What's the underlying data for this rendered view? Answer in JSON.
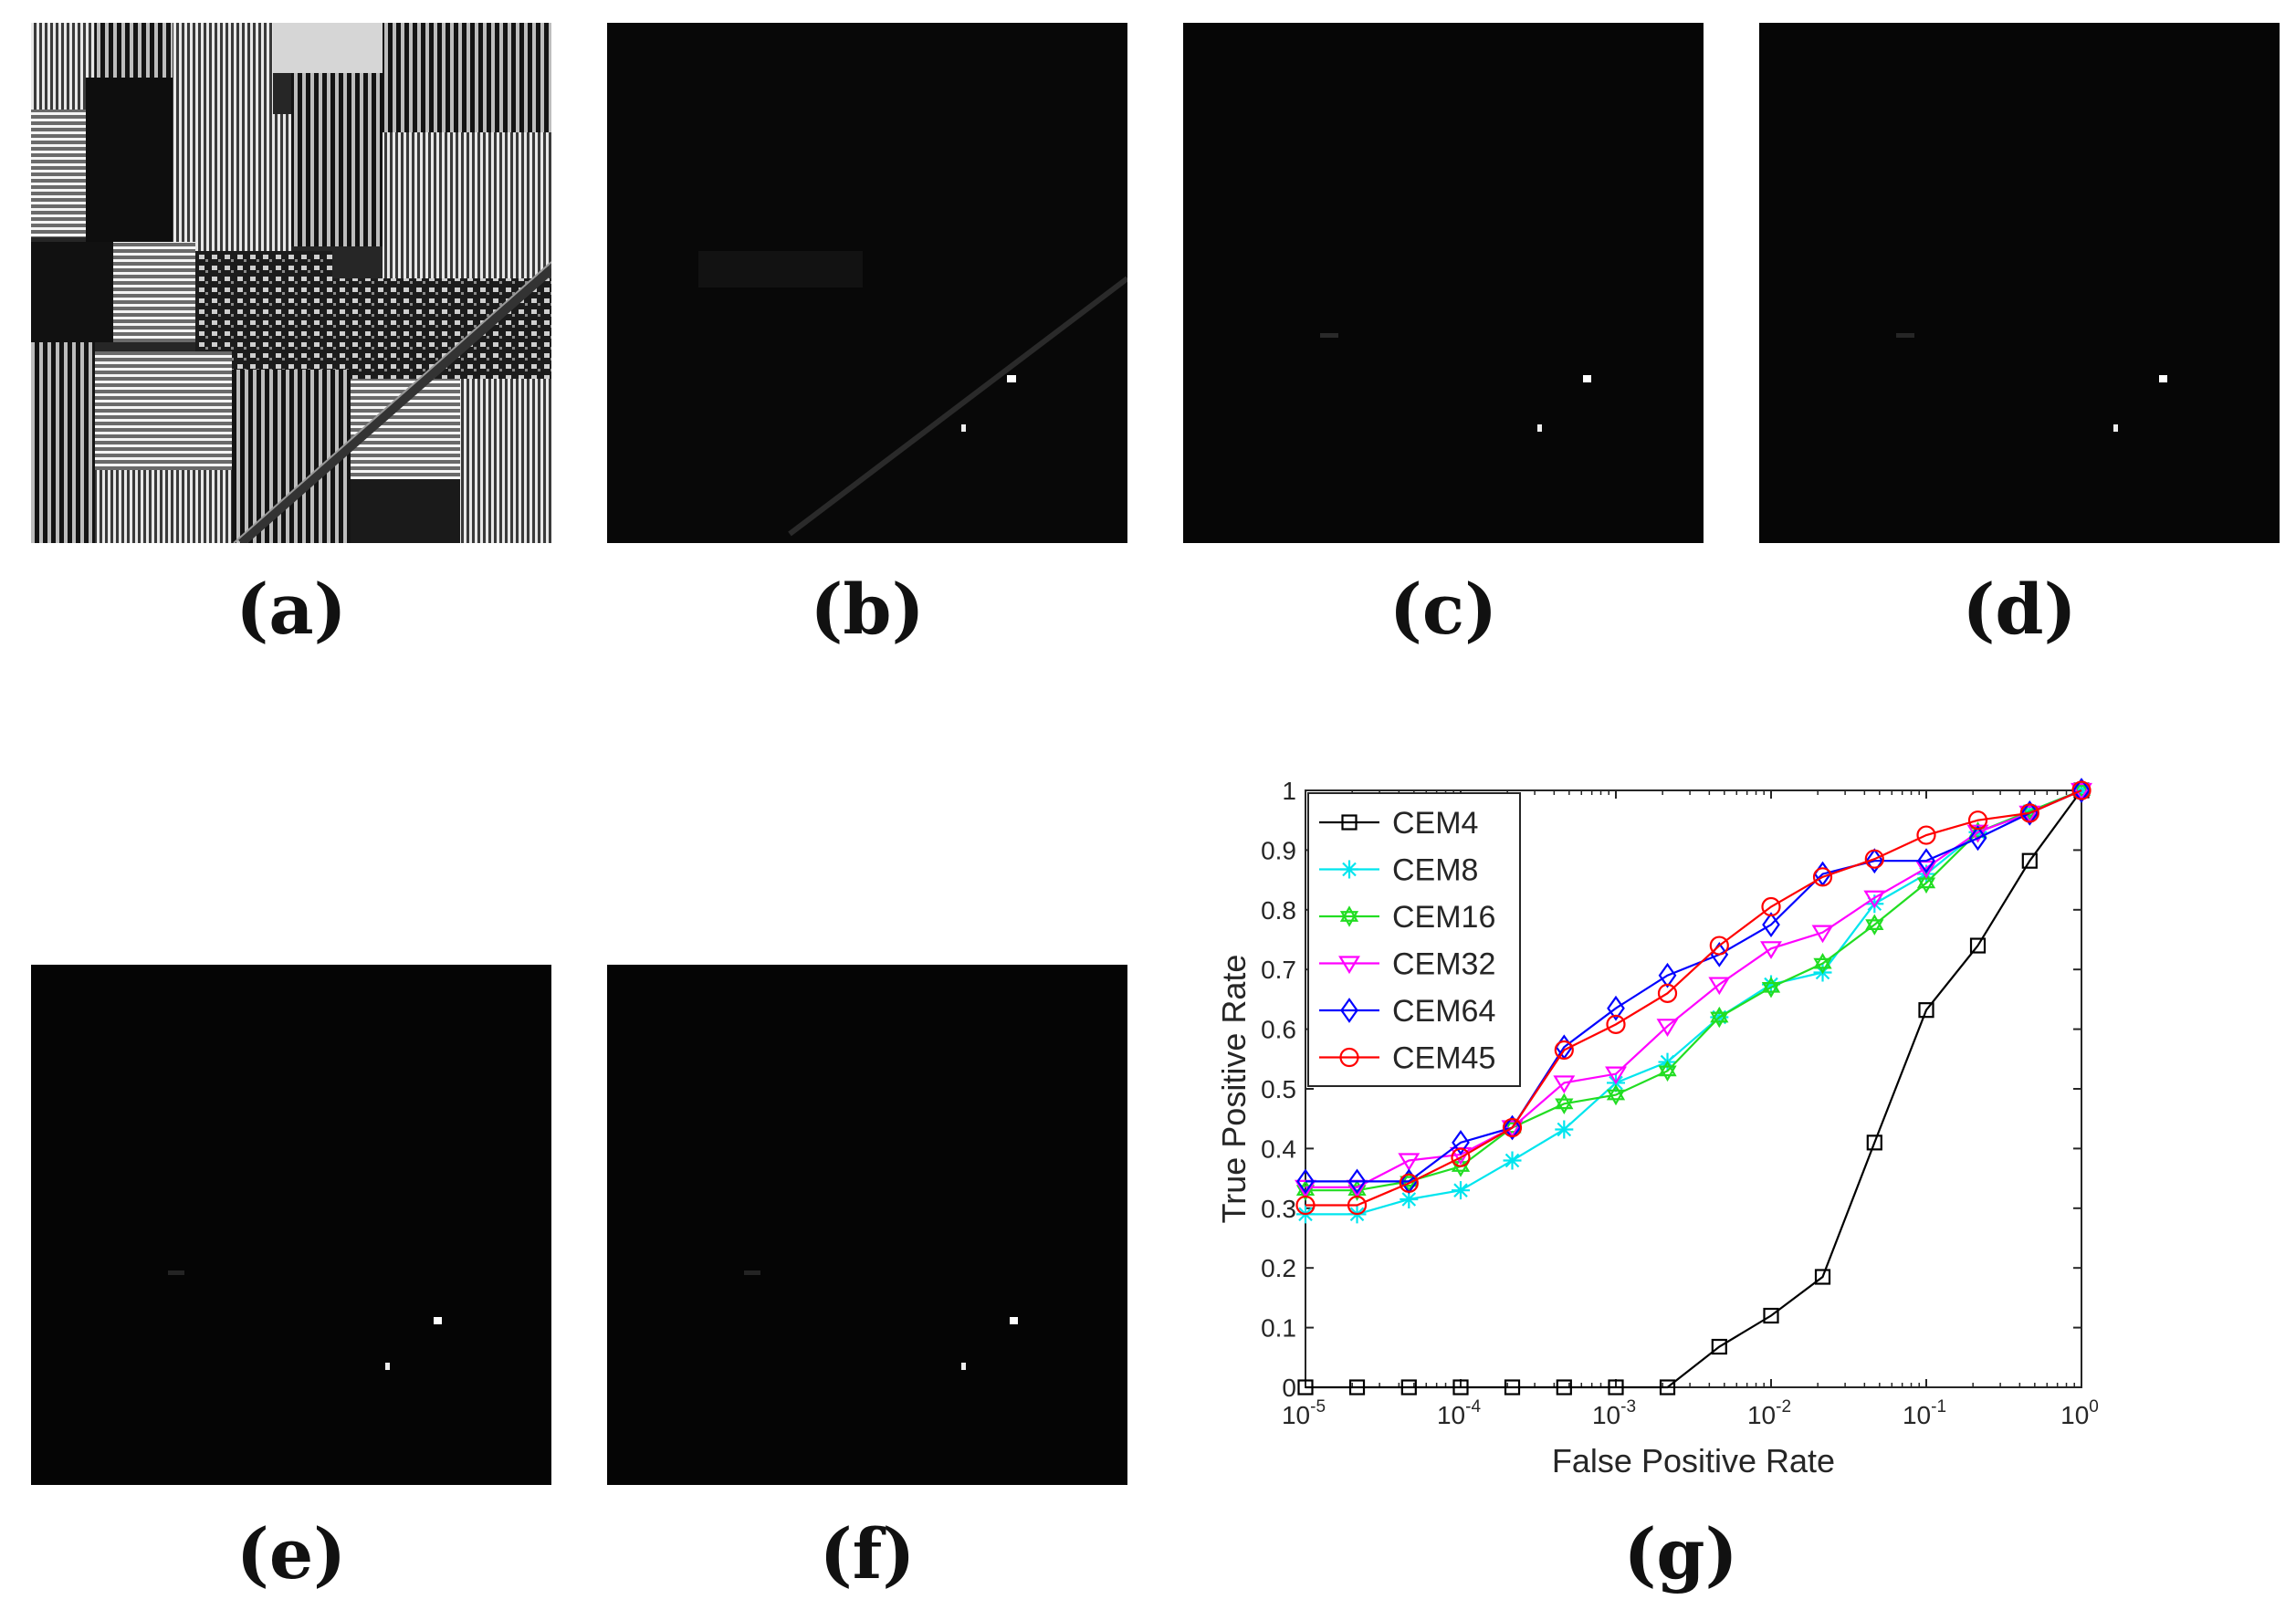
{
  "figure": {
    "panels": [
      {
        "id": "a",
        "label": "(a)",
        "description": "false-color band image"
      },
      {
        "id": "b",
        "label": "(b)",
        "description": "detection map CEM4"
      },
      {
        "id": "c",
        "label": "(c)",
        "description": "detection map CEM8"
      },
      {
        "id": "d",
        "label": "(d)",
        "description": "detection map CEM16"
      },
      {
        "id": "e",
        "label": "(e)",
        "description": "detection map CEM32"
      },
      {
        "id": "f",
        "label": "(f)",
        "description": "detection map CEM64"
      },
      {
        "id": "g",
        "label": "(g)",
        "description": "ROC curves"
      }
    ]
  },
  "chart_data": {
    "type": "line",
    "title": "",
    "xlabel": "False Positive Rate",
    "ylabel": "True Positive Rate",
    "xscale": "log",
    "xlim": [
      1e-05,
      1
    ],
    "ylim": [
      0,
      1
    ],
    "xtick_bases": [
      "10",
      "10",
      "10",
      "10",
      "10",
      "10"
    ],
    "xtick_exps": [
      "-5",
      "-4",
      "-3",
      "-2",
      "-1",
      "0"
    ],
    "yticks": [
      "0",
      "0.1",
      "0.2",
      "0.3",
      "0.4",
      "0.5",
      "0.6",
      "0.7",
      "0.8",
      "0.9",
      "1"
    ],
    "legend_position": "top-left",
    "x": [
      1e-05,
      2.15e-05,
      4.64e-05,
      0.0001,
      0.000215,
      0.000464,
      0.001,
      0.00215,
      0.00464,
      0.01,
      0.0215,
      0.0464,
      0.1,
      0.215,
      0.464,
      1
    ],
    "series": [
      {
        "name": "CEM4",
        "color": "#000000",
        "marker": "square",
        "values": [
          0,
          0,
          0,
          0,
          0,
          0,
          0,
          0,
          0.068,
          0.12,
          0.185,
          0.41,
          0.632,
          0.74,
          0.882,
          1
        ]
      },
      {
        "name": "CEM8",
        "color": "#00e5ee",
        "marker": "asterisk",
        "values": [
          0.29,
          0.29,
          0.315,
          0.33,
          0.38,
          0.432,
          0.51,
          0.545,
          0.62,
          0.675,
          0.695,
          0.81,
          0.86,
          0.93,
          0.965,
          1
        ]
      },
      {
        "name": "CEM16",
        "color": "#22dd22",
        "marker": "hexagram",
        "values": [
          0.33,
          0.33,
          0.345,
          0.37,
          0.435,
          0.475,
          0.49,
          0.53,
          0.62,
          0.67,
          0.71,
          0.775,
          0.845,
          0.93,
          0.965,
          1
        ]
      },
      {
        "name": "CEM32",
        "color": "#ff00ff",
        "marker": "triangle-down",
        "values": [
          0.335,
          0.335,
          0.38,
          0.39,
          0.435,
          0.51,
          0.525,
          0.605,
          0.675,
          0.735,
          0.762,
          0.82,
          0.87,
          0.93,
          0.962,
          1
        ]
      },
      {
        "name": "CEM64",
        "color": "#0000ff",
        "marker": "diamond",
        "values": [
          0.345,
          0.345,
          0.345,
          0.41,
          0.435,
          0.57,
          0.635,
          0.69,
          0.725,
          0.775,
          0.86,
          0.882,
          0.882,
          0.92,
          0.962,
          1
        ]
      },
      {
        "name": "CEM45",
        "color": "#ff0000",
        "marker": "circle",
        "values": [
          0.305,
          0.305,
          0.342,
          0.385,
          0.435,
          0.565,
          0.608,
          0.66,
          0.74,
          0.805,
          0.855,
          0.885,
          0.925,
          0.95,
          0.962,
          1
        ]
      }
    ]
  }
}
